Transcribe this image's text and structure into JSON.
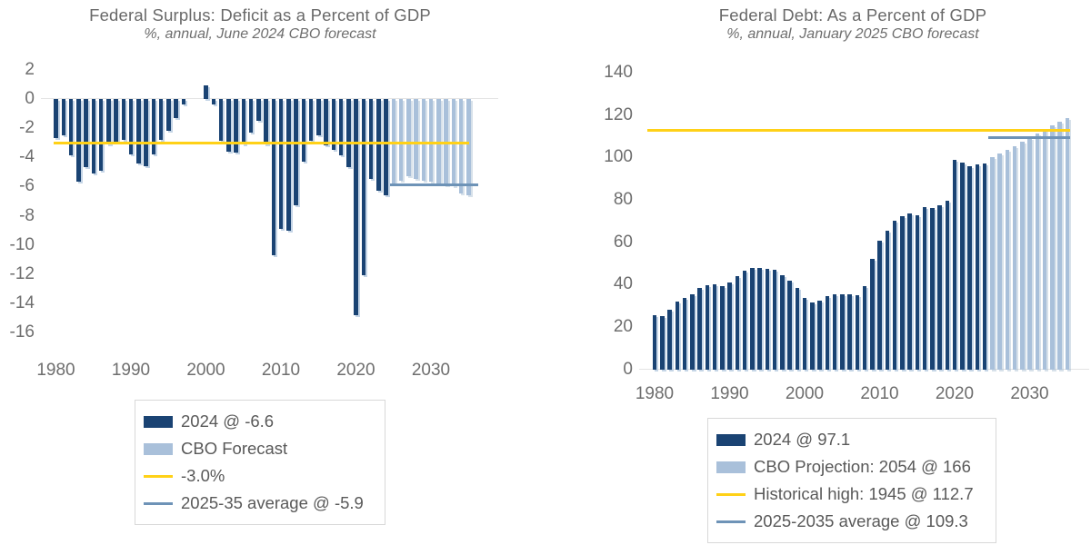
{
  "colors": {
    "historical_bar": "#1a4373",
    "forecast_bar": "#a9c0da",
    "gold_line": "#ffd117",
    "steel_line": "#6e93b7",
    "text_gray": "#696969",
    "axis_gray": "#6e6e6e"
  },
  "chart_data": [
    {
      "type": "bar",
      "title": "Federal Surplus: Deficit as a Percent of GDP",
      "subtitle": "%, annual, June 2024 CBO forecast",
      "xlabel": "",
      "ylabel": "",
      "ylim": [
        -16,
        2
      ],
      "yticks": [
        2,
        0,
        -2,
        -4,
        -6,
        -8,
        -10,
        -12,
        -14,
        -16
      ],
      "xticks": [
        1980,
        1990,
        2000,
        2010,
        2020,
        2030
      ],
      "grid": "zero-line-only",
      "legend_position": "bottom",
      "series": [
        {
          "name": "2024 @ -6.6",
          "role": "historical",
          "color": "#1a4373",
          "start_year": 1980,
          "values": [
            -2.7,
            -2.5,
            -3.9,
            -5.7,
            -4.7,
            -5.1,
            -4.9,
            -3.1,
            -3.0,
            -2.8,
            -3.8,
            -4.4,
            -4.6,
            -3.8,
            -2.8,
            -2.2,
            -1.3,
            -0.4,
            0.0,
            0.0,
            0.9,
            -0.4,
            -2.9,
            -3.6,
            -3.7,
            -3.1,
            -2.3,
            -1.5,
            -3.1,
            -10.7,
            -8.9,
            -9.0,
            -7.3,
            -4.3,
            -2.9,
            -2.5,
            -3.2,
            -3.5,
            -3.9,
            -4.7,
            -14.8,
            -12.1,
            -5.5,
            -6.3,
            -6.6
          ]
        },
        {
          "name": "CBO Forecast",
          "role": "forecast",
          "color": "#a9c0da",
          "start_year": 2025,
          "values": [
            -5.8,
            -5.6,
            -5.3,
            -5.5,
            -5.6,
            -5.7,
            -5.8,
            -5.9,
            -6.0,
            -6.5,
            -6.6
          ]
        }
      ],
      "reference_lines": [
        {
          "label": "-3.0%",
          "value": -3.0,
          "color": "#ffd117",
          "thickness": 3,
          "span_years": [
            1979.7,
            2035.1
          ]
        },
        {
          "label": "2025-35 average @ -5.9",
          "value": -5.9,
          "color": "#6e93b7",
          "thickness": 2.5,
          "span_years": [
            2024.6,
            2036.3
          ]
        }
      ]
    },
    {
      "type": "bar",
      "title": "Federal Debt: As a Percent of GDP",
      "subtitle": "%, annual, January 2025 CBO forecast",
      "xlabel": "",
      "ylabel": "",
      "ylim": [
        0,
        140
      ],
      "yticks": [
        140,
        120,
        100,
        80,
        60,
        40,
        20,
        0
      ],
      "xticks": [
        1980,
        1990,
        2000,
        2010,
        2020,
        2030
      ],
      "grid": "baseline-only",
      "legend_position": "bottom",
      "series": [
        {
          "name": "2024 @ 97.1",
          "role": "historical",
          "color": "#1a4373",
          "start_year": 1980,
          "values": [
            25.5,
            25.2,
            28.0,
            32.2,
            33.5,
            35.5,
            38.5,
            39.8,
            40.0,
            39.4,
            41.0,
            44.0,
            46.6,
            48.0,
            47.8,
            47.5,
            46.8,
            44.5,
            41.9,
            38.4,
            33.6,
            31.4,
            32.6,
            34.5,
            35.5,
            35.6,
            35.3,
            35.2,
            39.2,
            52.2,
            60.6,
            65.5,
            70.0,
            72.2,
            73.7,
            72.5,
            76.4,
            76.1,
            77.6,
            79.4,
            98.7,
            97.5,
            95.8,
            96.5,
            97.1
          ]
        },
        {
          "name": "CBO Projection: 2054 @ 166",
          "role": "forecast",
          "color": "#a9c0da",
          "start_year": 2025,
          "values": [
            100.1,
            101.9,
            103.4,
            105.2,
            107.2,
            109.2,
            111.3,
            113.2,
            115.1,
            116.9,
            118.5
          ]
        }
      ],
      "reference_lines": [
        {
          "label": "Historical high: 1945 @ 112.7",
          "value": 112.7,
          "color": "#ffd117",
          "thickness": 3,
          "span_years": [
            1979.0,
            2035.4
          ]
        },
        {
          "label": "2025-2035 average @ 109.3",
          "value": 109.3,
          "color": "#6e93b7",
          "thickness": 2.5,
          "span_years": [
            2024.5,
            2035.4
          ]
        }
      ]
    }
  ]
}
